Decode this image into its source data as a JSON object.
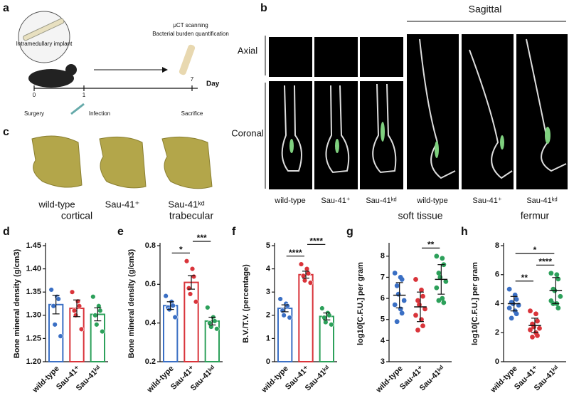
{
  "panels": {
    "a": {
      "letter": "a",
      "implant": "Intramedullary implant",
      "step1": "μCT scanning",
      "step2": "Bacterial burden quantification",
      "t0": "0",
      "t1": "1",
      "t7": "7",
      "unit": "Day",
      "e0": "Surgery",
      "e1": "Infection",
      "e7": "Sacrifice"
    },
    "b": {
      "letter": "b",
      "sagittal": "Sagittal",
      "axial": "Axial",
      "coronal": "Coronal",
      "labels": [
        "wild-type",
        "Sau-41⁺",
        "Sau-41ᵏᵈ",
        "wild-type",
        "Sau-41⁺",
        "Sau-41ᵏᵈ"
      ]
    },
    "c": {
      "letter": "c",
      "labels": [
        "wild-type",
        "Sau-41⁺",
        "Sau-41ᵏᵈ"
      ]
    }
  },
  "chart_data": [
    {
      "type": "bar",
      "label": "d",
      "title": "cortical",
      "y_label": "Bone mineral density (g/cm3)",
      "categories": [
        "wild-type",
        "Sau-41⁺",
        "Sau-41ᵏᵈ"
      ],
      "colors": [
        "#3a6fc4",
        "#d9343a",
        "#2ca05a"
      ],
      "values": [
        1.323,
        1.315,
        1.302
      ],
      "errors": [
        0.02,
        0.018,
        0.014
      ],
      "points": [
        [
          1.355,
          1.34,
          1.335,
          1.32,
          1.28,
          1.255
        ],
        [
          1.35,
          1.33,
          1.32,
          1.31,
          1.3,
          1.27
        ],
        [
          1.34,
          1.32,
          1.31,
          1.3,
          1.28,
          1.265
        ]
      ],
      "ylim": [
        1.2,
        1.45
      ],
      "yticks": [
        {
          "value": 1.2,
          "label": "1.20"
        },
        1.25,
        {
          "value": 1.3,
          "label": "1.30"
        },
        1.35,
        {
          "value": 1.4,
          "label": "1.40"
        },
        1.45
      ],
      "significance": []
    },
    {
      "type": "bar",
      "label": "e",
      "title": "trabecular",
      "y_label": "Bone mineral density (g/cm3)",
      "categories": [
        "wild-type",
        "Sau-41⁺",
        "Sau-41ᵏᵈ"
      ],
      "colors": [
        "#3a6fc4",
        "#d9343a",
        "#2ca05a"
      ],
      "values": [
        0.49,
        0.61,
        0.41
      ],
      "errors": [
        0.02,
        0.035,
        0.02
      ],
      "points": [
        [
          0.54,
          0.51,
          0.49,
          0.48,
          0.47,
          0.43
        ],
        [
          0.72,
          0.68,
          0.64,
          0.58,
          0.55,
          0.51
        ],
        [
          0.48,
          0.43,
          0.41,
          0.4,
          0.38,
          0.37
        ]
      ],
      "ylim": [
        0.2,
        0.8
      ],
      "yticks": [
        0.2,
        0.4,
        0.6,
        0.8
      ],
      "significance": [
        {
          "from": 0,
          "to": 1,
          "label": "*"
        },
        {
          "from": 1,
          "to": 2,
          "label": "***"
        }
      ]
    },
    {
      "type": "bar",
      "label": "f",
      "y_label": "B.V./T.V. (percentage)",
      "categories": [
        "wild-type",
        "Sau-41⁺",
        "Sau-41ᵏᵈ"
      ],
      "colors": [
        "#3a6fc4",
        "#d9343a",
        "#2ca05a"
      ],
      "values": [
        2.3,
        3.75,
        1.95
      ],
      "errors": [
        0.15,
        0.15,
        0.15
      ],
      "points": [
        [
          2.7,
          2.5,
          2.4,
          2.2,
          2.0,
          1.9
        ],
        [
          4.2,
          4.0,
          3.8,
          3.7,
          3.5,
          3.4
        ],
        [
          2.3,
          2.1,
          2.0,
          1.9,
          1.7,
          1.6
        ]
      ],
      "ylim": [
        0,
        5
      ],
      "yticks": [
        0,
        1,
        2,
        3,
        4,
        5
      ],
      "significance": [
        {
          "from": 0,
          "to": 1,
          "label": "****"
        },
        {
          "from": 1,
          "to": 2,
          "label": "****"
        }
      ]
    },
    {
      "type": "dot",
      "label": "g",
      "title": "soft tissue",
      "y_label": "log10[C.F.U.] per gram",
      "categories": [
        "wild-type",
        "Sau-41⁺",
        "Sau-41ᵏᵈ"
      ],
      "colors": [
        "#3a6fc4",
        "#d9343a",
        "#2ca05a"
      ],
      "values": [
        6.15,
        5.6,
        6.9
      ],
      "errors": [
        0.6,
        0.7,
        0.7
      ],
      "points": [
        [
          7.2,
          7.0,
          6.9,
          6.6,
          6.2,
          5.9,
          5.7,
          5.5,
          5.3,
          4.9
        ],
        [
          6.9,
          6.4,
          6.1,
          5.9,
          5.7,
          5.5,
          5.2,
          5.0,
          4.7,
          4.5
        ],
        [
          8.0,
          7.9,
          7.6,
          7.2,
          7.0,
          6.8,
          6.5,
          6.0,
          5.8,
          5.9
        ]
      ],
      "ylim": [
        3,
        8.5
      ],
      "yticks": [
        3,
        4,
        5,
        6,
        7,
        8
      ],
      "significance": [
        {
          "from": 1,
          "to": 2,
          "label": "**"
        }
      ]
    },
    {
      "type": "dot",
      "label": "h",
      "title": "fermur",
      "y_label": "log10[C.F.U.] per gram",
      "categories": [
        "wild-type",
        "Sau-41⁺",
        "Sau-41ᵏᵈ"
      ],
      "colors": [
        "#3a6fc4",
        "#d9343a",
        "#2ca05a"
      ],
      "values": [
        4.0,
        2.5,
        4.9
      ],
      "errors": [
        0.5,
        0.5,
        0.9
      ],
      "points": [
        [
          5.0,
          4.6,
          4.3,
          4.1,
          4.0,
          3.9,
          3.7,
          3.5,
          3.3,
          3.0
        ],
        [
          3.5,
          3.3,
          2.8,
          2.6,
          2.4,
          2.3,
          2.2,
          2.0,
          1.8,
          1.7
        ],
        [
          6.1,
          6.0,
          5.7,
          5.0,
          4.9,
          4.5,
          4.2,
          4.0,
          3.7,
          4.0
        ]
      ],
      "ylim": [
        0,
        8
      ],
      "yticks": [
        0,
        2,
        4,
        6,
        8
      ],
      "significance": [
        {
          "from": 0,
          "to": 1,
          "label": "**"
        },
        {
          "from": 1,
          "to": 2,
          "label": "****"
        },
        {
          "from": 0,
          "to": 2,
          "label": "*"
        }
      ]
    }
  ]
}
